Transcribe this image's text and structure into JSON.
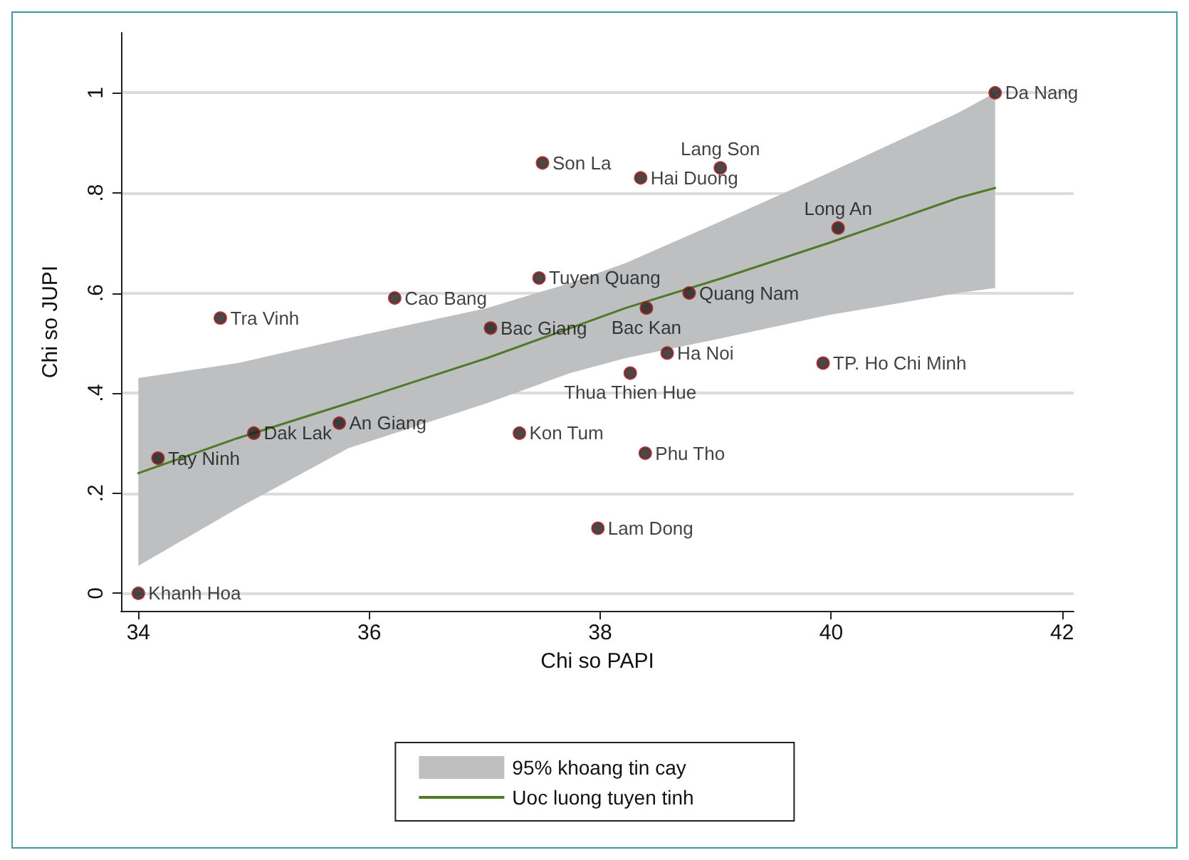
{
  "chart_data": {
    "type": "scatter",
    "xlabel": "Chi so PAPI",
    "ylabel": "Chi so JUPI",
    "xlim": [
      33.85,
      42.1
    ],
    "xticks": [
      34,
      36,
      38,
      40,
      42
    ],
    "ylim": [
      -0.035,
      1.12
    ],
    "yticks": [
      {
        "value": 0,
        "label": "0"
      },
      {
        "value": 0.2,
        "label": ".2"
      },
      {
        "value": 0.4,
        "label": ".4"
      },
      {
        "value": 0.6,
        "label": ".6"
      },
      {
        "value": 0.8,
        "label": ".8"
      },
      {
        "value": 1,
        "label": "1"
      }
    ],
    "grid": "y",
    "legend": "bottom",
    "marker": "circle",
    "series": [
      {
        "name": "Uoc luong tuyen tinh",
        "type": "line",
        "color": "#4f7a28",
        "marker": "none",
        "x": [
          34,
          34.86,
          35.82,
          37.02,
          37.74,
          38.22,
          39.06,
          39.98,
          41.1,
          41.42
        ],
        "values": [
          0.24,
          0.31,
          0.38,
          0.47,
          0.53,
          0.57,
          0.63,
          0.7,
          0.79,
          0.81
        ],
        "lower": [
          0.055,
          0.17,
          0.29,
          0.38,
          0.44,
          0.47,
          0.51,
          0.556,
          0.6,
          0.61
        ],
        "upper": [
          0.43,
          0.46,
          0.51,
          0.57,
          0.62,
          0.66,
          0.745,
          0.84,
          0.96,
          1.0
        ]
      },
      {
        "color": "#1a1a1a",
        "x": [
          34.0,
          34.17,
          34.71,
          35.0,
          35.74,
          36.22,
          37.05,
          37.3,
          37.47,
          37.5,
          37.98,
          38.26,
          38.35,
          38.4,
          38.39,
          38.58,
          38.77,
          39.04,
          39.93,
          40.06,
          41.42
        ],
        "values": [
          0,
          0.27,
          0.55,
          0.32,
          0.34,
          0.59,
          0.53,
          0.32,
          0.63,
          0.86,
          0.13,
          0.44,
          0.83,
          0.57,
          0.28,
          0.48,
          0.6,
          0.85,
          0.46,
          0.73,
          1.0
        ]
      }
    ],
    "annotations": [
      "95% khoang tin cay",
      {
        "text": "Khanh Hoa",
        "x": 34.0,
        "y": 0
      },
      {
        "text": "Tay Ninh",
        "x": 34.17,
        "y": 0.27
      },
      {
        "text": "Tra Vinh",
        "x": 34.71,
        "y": 0.55
      },
      {
        "text": "Dak Lak",
        "x": 35.0,
        "y": 0.32
      },
      {
        "text": "An Giang",
        "x": 35.74,
        "y": 0.34
      },
      {
        "text": "Cao Bang",
        "x": 36.22,
        "y": 0.59
      },
      {
        "text": "Bac Giang",
        "x": 37.05,
        "y": 0.53
      },
      {
        "text": "Kon Tum",
        "x": 37.3,
        "y": 0.32
      },
      {
        "text": "Tuyen Quang",
        "x": 37.47,
        "y": 0.63
      },
      {
        "text": "Son La",
        "x": 37.5,
        "y": 0.86
      },
      {
        "text": "Lam Dong",
        "x": 37.98,
        "y": 0.13
      },
      {
        "text": "Thua Thien Hue",
        "x": 38.26,
        "y": 0.44
      },
      {
        "text": "Hai Duong",
        "x": 38.35,
        "y": 0.83
      },
      {
        "text": "Bac Kan",
        "x": 38.4,
        "y": 0.57
      },
      {
        "text": "Phu Tho",
        "x": 38.39,
        "y": 0.28
      },
      {
        "text": "Ha Noi",
        "x": 38.58,
        "y": 0.48
      },
      {
        "text": "Quang Nam",
        "x": 38.77,
        "y": 0.6
      },
      {
        "text": "Lang Son",
        "x": 39.04,
        "y": 0.85
      },
      {
        "text": "TP. Ho Chi Minh",
        "x": 39.93,
        "y": 0.46
      },
      {
        "text": "Long An",
        "x": 40.06,
        "y": 0.73
      },
      {
        "text": "Da Nang",
        "x": 41.42,
        "y": 1.0
      }
    ]
  }
}
